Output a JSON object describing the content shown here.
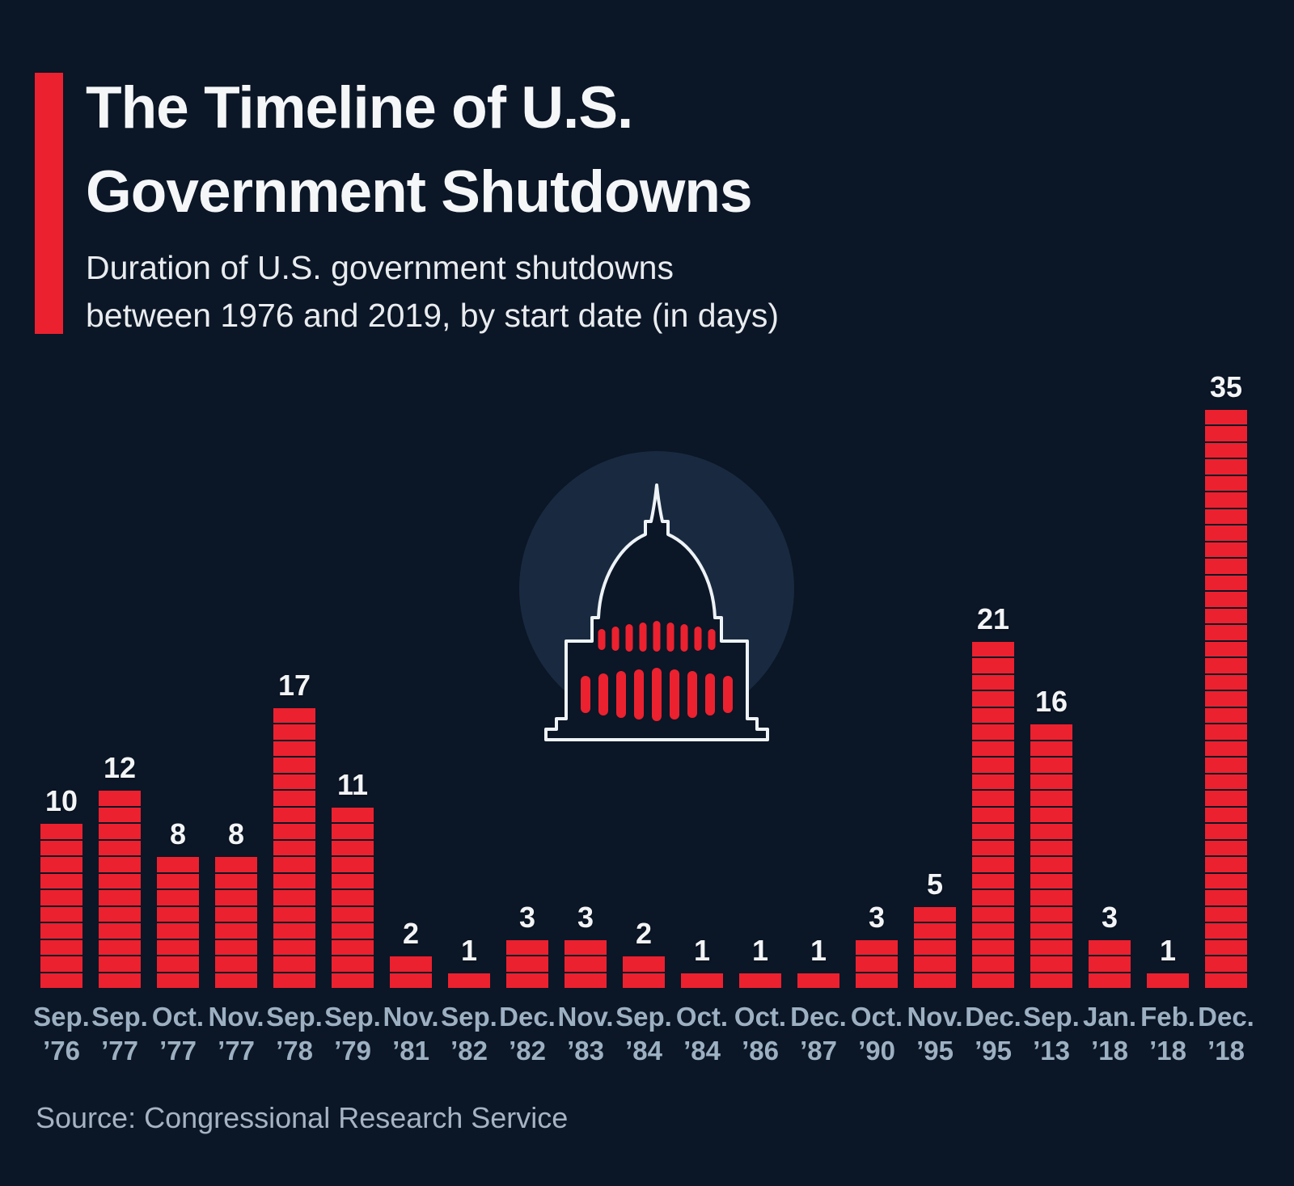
{
  "colors": {
    "background": "#0b1626",
    "accent_red": "#ec212f",
    "title_text": "#f4f6f8",
    "subtitle_text": "#e9ecef",
    "axis_label": "#9cb0c2",
    "source_text": "#a5b3c2",
    "capitol_circle": "#192a40",
    "capitol_outline": "#eef3f7",
    "capitol_windows": "#ec212f"
  },
  "header": {
    "title_lines": [
      "The Timeline of U.S.",
      "Government Shutdowns"
    ],
    "subtitle_lines": [
      "Duration of U.S. government shutdowns",
      "between 1976 and 2019, by start date (in days)"
    ]
  },
  "capitol": {
    "icon": "us-capitol-dome-icon"
  },
  "chart_data": {
    "type": "bar",
    "title": "The Timeline of U.S. Government Shutdowns",
    "subtitle": "Duration of U.S. government shutdowns between 1976 and 2019, by start date (in days)",
    "unit": "days",
    "ylim": [
      0,
      35
    ],
    "grid": false,
    "legend": false,
    "bar_color": "#ec212f",
    "bar_style": "segmented, 1 segment per day",
    "value_labels_shown": true,
    "categories": [
      "Sep. ’76",
      "Sep. ’77",
      "Oct. ’77",
      "Nov. ’77",
      "Sep. ’78",
      "Sep. ’79",
      "Nov. ’81",
      "Sep. ’82",
      "Dec. ’82",
      "Nov. ’83",
      "Sep. ’84",
      "Oct. ’84",
      "Oct. ’86",
      "Dec. ’87",
      "Oct. ’90",
      "Nov. ’95",
      "Dec. ’95",
      "Sep. ’13",
      "Jan. ’18",
      "Feb. ’18",
      "Dec. ’18"
    ],
    "tick_labels": [
      {
        "month": "Sep.",
        "year": "’76"
      },
      {
        "month": "Sep.",
        "year": "’77"
      },
      {
        "month": "Oct.",
        "year": "’77"
      },
      {
        "month": "Nov.",
        "year": "’77"
      },
      {
        "month": "Sep.",
        "year": "’78"
      },
      {
        "month": "Sep.",
        "year": "’79"
      },
      {
        "month": "Nov.",
        "year": "’81"
      },
      {
        "month": "Sep.",
        "year": "’82"
      },
      {
        "month": "Dec.",
        "year": "’82"
      },
      {
        "month": "Nov.",
        "year": "’83"
      },
      {
        "month": "Sep.",
        "year": "’84"
      },
      {
        "month": "Oct.",
        "year": "’84"
      },
      {
        "month": "Oct.",
        "year": "’86"
      },
      {
        "month": "Dec.",
        "year": "’87"
      },
      {
        "month": "Oct.",
        "year": "’90"
      },
      {
        "month": "Nov.",
        "year": "’95"
      },
      {
        "month": "Dec.",
        "year": "’95"
      },
      {
        "month": "Sep.",
        "year": "’13"
      },
      {
        "month": "Jan.",
        "year": "’18"
      },
      {
        "month": "Feb.",
        "year": "’18"
      },
      {
        "month": "Dec.",
        "year": "’18"
      }
    ],
    "values": [
      10,
      12,
      8,
      8,
      17,
      11,
      2,
      1,
      3,
      3,
      2,
      1,
      1,
      1,
      3,
      5,
      21,
      16,
      3,
      1,
      35
    ]
  },
  "footer": {
    "source": "Source: Congressional Research Service"
  }
}
